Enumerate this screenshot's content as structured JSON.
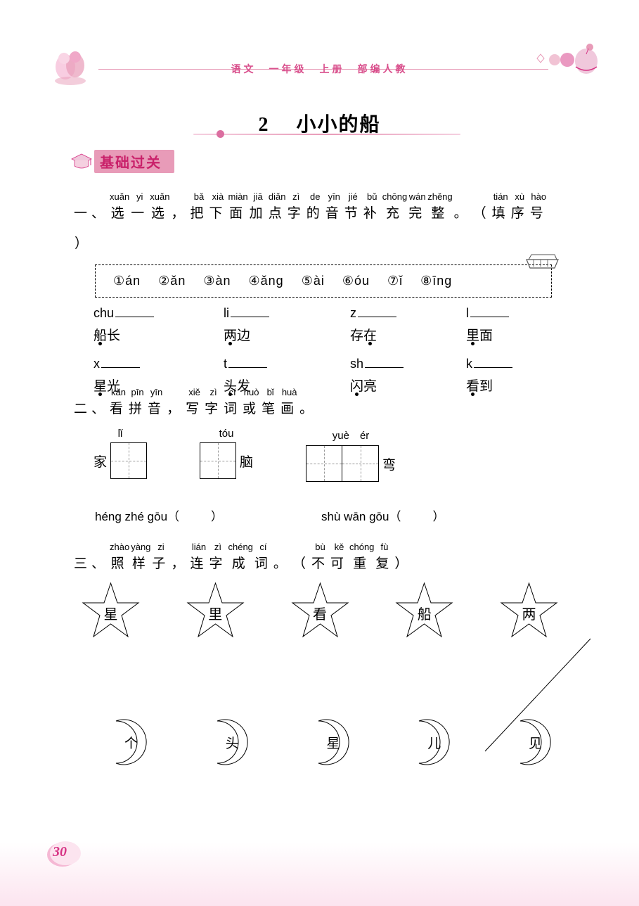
{
  "colors": {
    "pink_light": "#f5d0e0",
    "pink_mid": "#e89bb8",
    "pink_dark": "#d63384",
    "pink_text": "#c9216a",
    "footer_pink": "#fce4ef"
  },
  "header": {
    "text": "语文　一年级　上册　部编人教"
  },
  "title": {
    "number": "2",
    "text": "小小的船"
  },
  "section_badge": "基础过关",
  "q1": {
    "prefix": "一、",
    "pinyin": [
      "xuǎn",
      "yi",
      "xuǎn",
      "",
      "bǎ",
      "xià",
      "miàn",
      "jiā",
      "diǎn",
      "zì",
      "de",
      "yīn",
      "jié",
      "bǔ",
      "chōng",
      "wán",
      "zhěng",
      "",
      "",
      "tián",
      "xù",
      "hào",
      ""
    ],
    "chars": [
      "选",
      "一",
      "选",
      "，",
      "把",
      "下",
      "面",
      "加",
      "点",
      "字",
      "的",
      "音",
      "节",
      "补",
      "充",
      "完",
      "整",
      "。",
      "（",
      "填",
      "序",
      "号",
      "）"
    ],
    "options": [
      "①án",
      "②ǎn",
      "③àn",
      "④ǎng",
      "⑤ài",
      "⑥óu",
      "⑦ǐ",
      "⑧īng"
    ],
    "blanks_row1": [
      {
        "prefix": "chu",
        "word": "船长",
        "dot_index": 0
      },
      {
        "prefix": "li",
        "word": "两边",
        "dot_index": 0
      },
      {
        "prefix": "z",
        "word": "存在",
        "dot_index": 1
      },
      {
        "prefix": "l",
        "word": "里面",
        "dot_index": 0
      }
    ],
    "blanks_row2": [
      {
        "prefix": "x",
        "word": "星光",
        "dot_index": 0
      },
      {
        "prefix": "t",
        "word": "头发",
        "dot_index": 0
      },
      {
        "prefix": "sh",
        "word": "闪亮",
        "dot_index": 0
      },
      {
        "prefix": "k",
        "word": "看到",
        "dot_index": 0
      }
    ]
  },
  "q2": {
    "prefix": "二、",
    "pinyin": [
      "kàn",
      "pīn",
      "yīn",
      "",
      "xiě",
      "zì",
      "cí",
      "huò",
      "bǐ",
      "huà",
      ""
    ],
    "chars": [
      "看",
      "拼",
      "音",
      "，",
      "写",
      "字",
      "词",
      "或",
      "笔",
      "画",
      "。"
    ],
    "boxes": [
      {
        "top": "lǐ",
        "left": "家",
        "right": "",
        "double": false
      },
      {
        "top": "tóu",
        "left": "",
        "right": "脑",
        "double": false
      },
      {
        "top": "yuè　ér",
        "left": "",
        "right": "弯",
        "double": true
      }
    ],
    "strokes": [
      {
        "label": "héng zhé gōu（",
        "close": "）"
      },
      {
        "label": "shù wān gōu（",
        "close": "）"
      }
    ]
  },
  "q3": {
    "prefix": "三、",
    "pinyin": [
      "zhào",
      "yàng",
      "zi",
      "",
      "lián",
      "zì",
      "chéng",
      "cí",
      "",
      "",
      "bù",
      "kě",
      "chóng",
      "fù",
      ""
    ],
    "chars": [
      "照",
      "样",
      "子",
      "，",
      "连",
      "字",
      "成",
      "词",
      "。",
      "（",
      "不",
      "可",
      "重",
      "复",
      "）"
    ],
    "stars": [
      "星",
      "里",
      "看",
      "船",
      "两"
    ],
    "moons": [
      "个",
      "头",
      "星",
      "儿",
      "见"
    ]
  },
  "page_number": "30"
}
